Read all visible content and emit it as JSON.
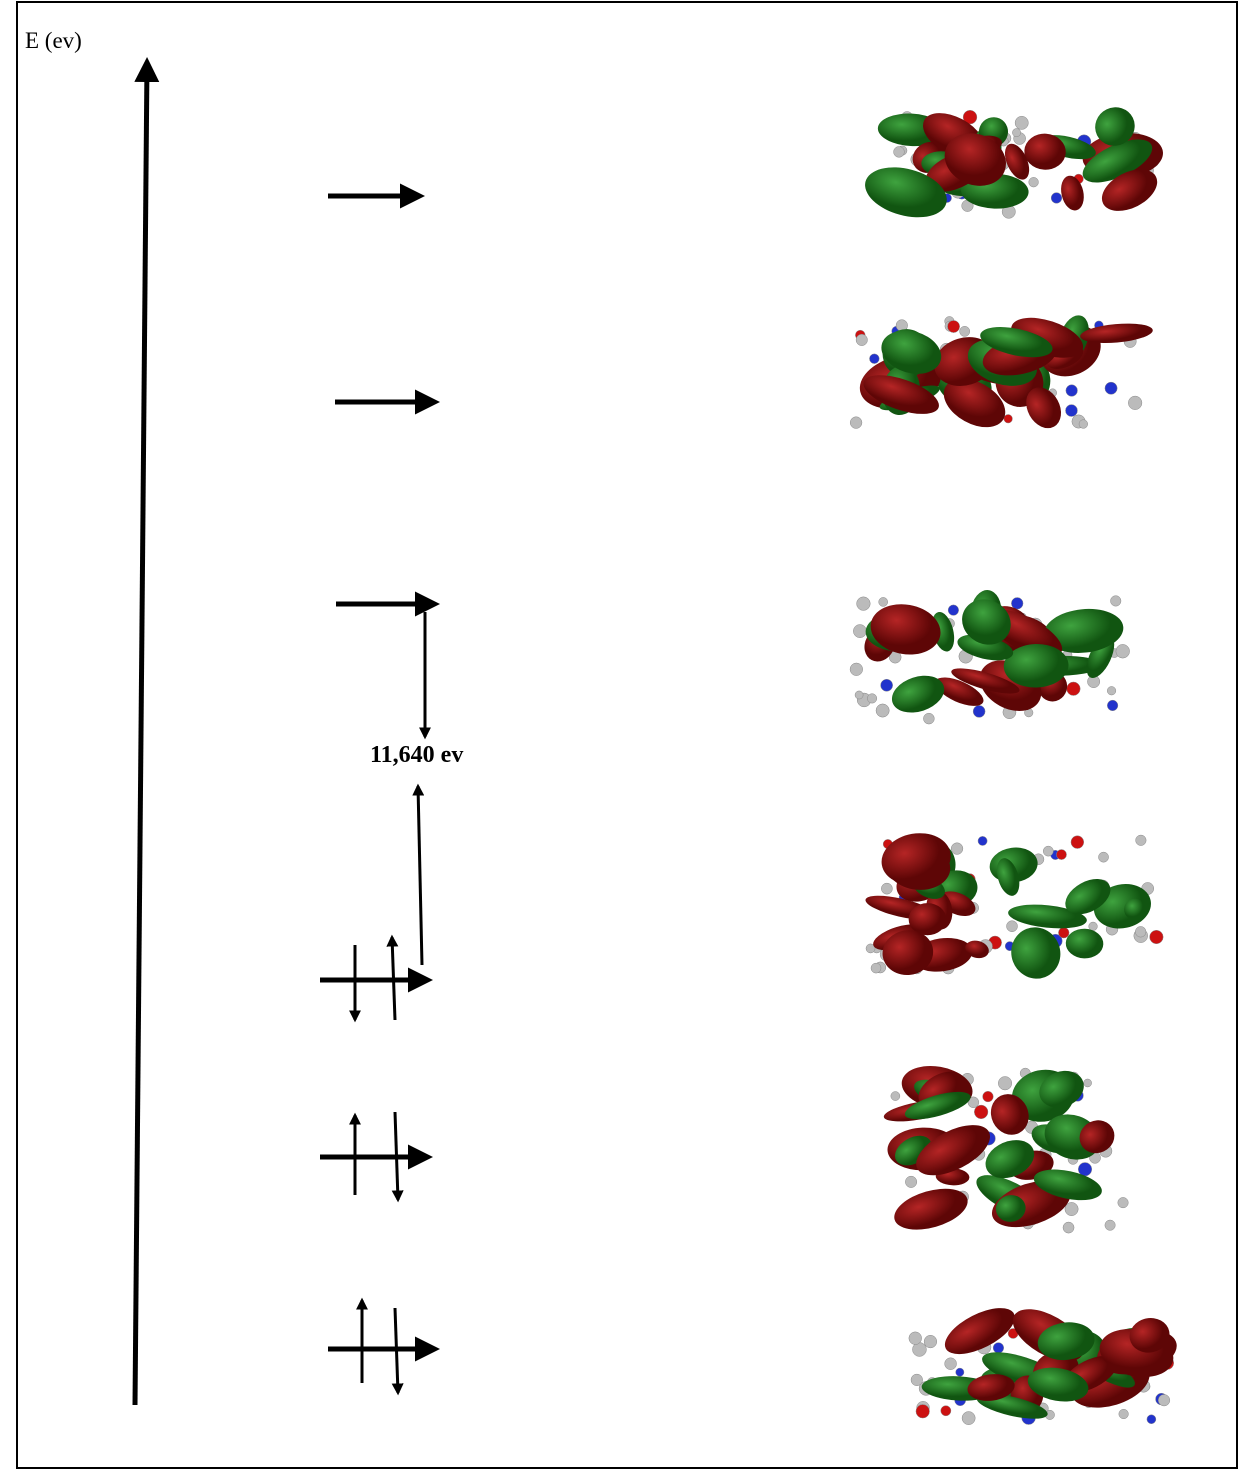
{
  "axis_label": "E (ev)",
  "gap_label": "11,640 ev"
}
